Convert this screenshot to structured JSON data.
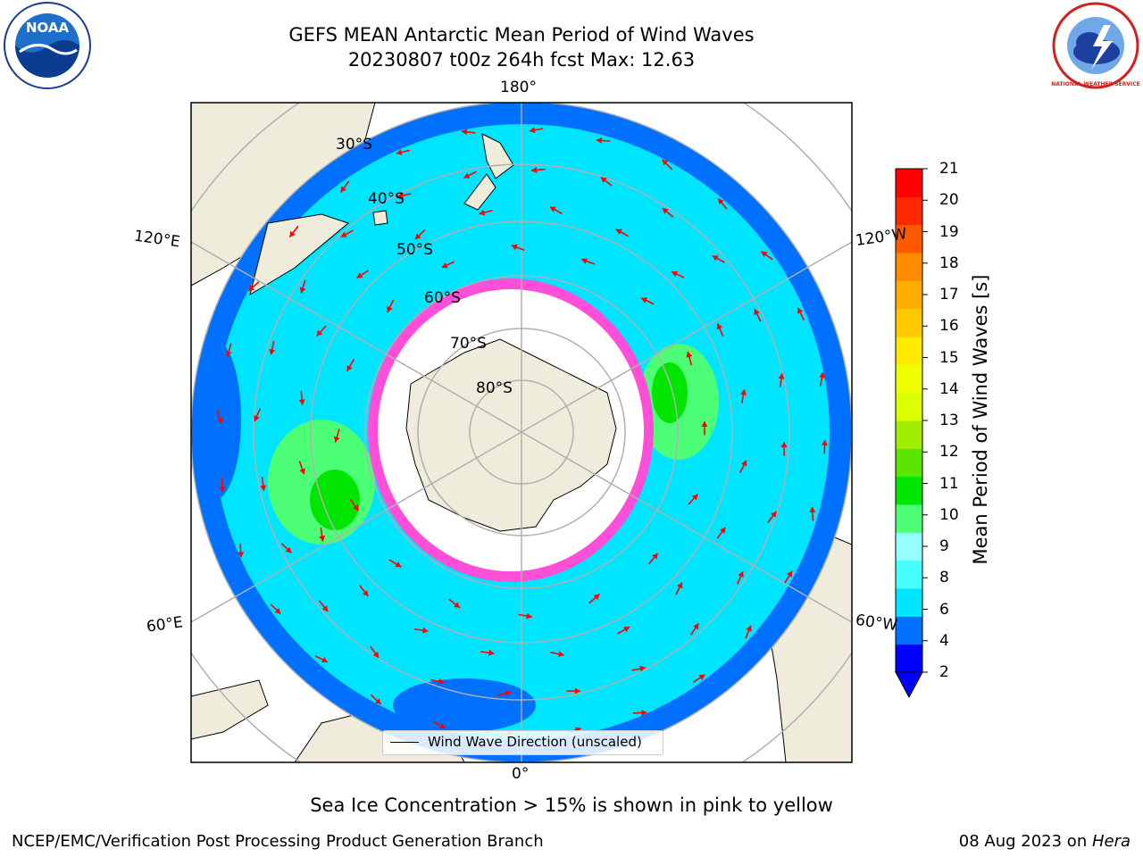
{
  "title_line1": "GEFS MEAN Antarctic Mean Period of Wind Waves",
  "title_line2": "20230807 t00z 264h fcst   Max: 12.63",
  "logos": {
    "left": "noaa-logo",
    "right": "national-weather-service-logo",
    "left_text": "NOAA",
    "right_text": "NATIONAL WEATHER SERVICE"
  },
  "colorbar": {
    "label": "Mean Period of Wind Waves [s]",
    "ticks": [
      "21",
      "20",
      "19",
      "18",
      "17",
      "16",
      "15",
      "14",
      "13",
      "12",
      "11",
      "10",
      "9",
      "8",
      "6",
      "4",
      "2"
    ],
    "colors": [
      "#0000ff",
      "#0070ff",
      "#00e5ff",
      "#47ffff",
      "#96ffff",
      "#4cff76",
      "#00e600",
      "#5ae600",
      "#a2ee00",
      "#dcff00",
      "#f0ff00",
      "#ffea00",
      "#ffc800",
      "#ffae00",
      "#ff8c00",
      "#ff5a00",
      "#ff2800",
      "#ff0000"
    ]
  },
  "map": {
    "projection": "south-polar-stereographic",
    "lon_labels": {
      "top": "180°",
      "bottom": "0°",
      "upper_left": "120°E",
      "upper_right": "120°W",
      "lower_left": "60°E",
      "lower_right": "60°W"
    },
    "lat_labels": [
      "30°S",
      "40°S",
      "50°S",
      "60°S",
      "70°S",
      "80°S"
    ],
    "colors": {
      "land": "#efecdc",
      "ocean_fill": "#00f0ff",
      "ice_edge": "#ff4fd8",
      "arrows": "#ff0000"
    }
  },
  "legend": {
    "label": "Wind Wave Direction (unscaled)"
  },
  "caption": "Sea Ice Concentration > 15% is shown in pink to yellow",
  "footer": {
    "left": "NCEP/EMC/Verification Post Processing Product Generation Branch",
    "date": "08 Aug 2023 on ",
    "machine": "Hera"
  }
}
